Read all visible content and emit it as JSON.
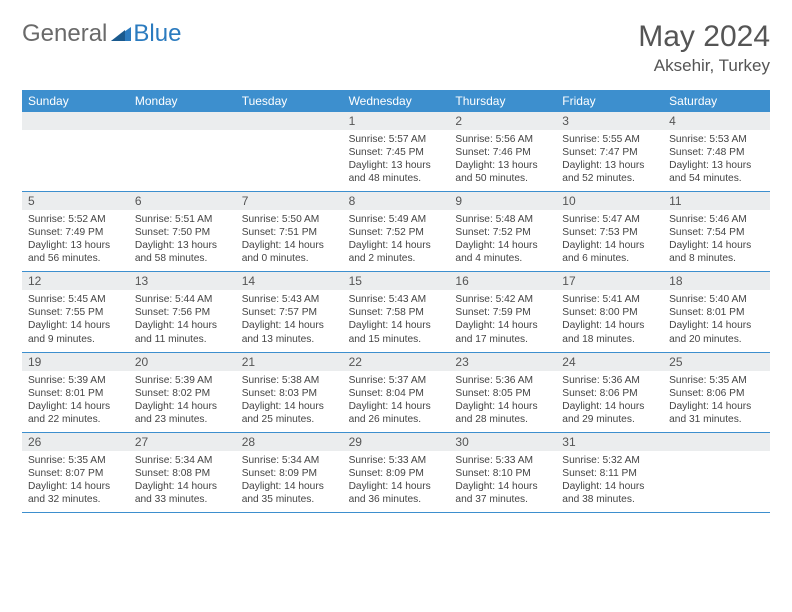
{
  "brand": {
    "part1": "General",
    "part2": "Blue"
  },
  "title": "May 2024",
  "location": "Aksehir, Turkey",
  "colors": {
    "header_bar": "#3d8fce",
    "daynum_bg": "#ebedee",
    "text": "#444444",
    "border": "#3d8fce"
  },
  "day_names": [
    "Sunday",
    "Monday",
    "Tuesday",
    "Wednesday",
    "Thursday",
    "Friday",
    "Saturday"
  ],
  "weeks": [
    [
      null,
      null,
      null,
      {
        "n": "1",
        "sr": "5:57 AM",
        "ss": "7:45 PM",
        "dl": "13 hours and 48 minutes."
      },
      {
        "n": "2",
        "sr": "5:56 AM",
        "ss": "7:46 PM",
        "dl": "13 hours and 50 minutes."
      },
      {
        "n": "3",
        "sr": "5:55 AM",
        "ss": "7:47 PM",
        "dl": "13 hours and 52 minutes."
      },
      {
        "n": "4",
        "sr": "5:53 AM",
        "ss": "7:48 PM",
        "dl": "13 hours and 54 minutes."
      }
    ],
    [
      {
        "n": "5",
        "sr": "5:52 AM",
        "ss": "7:49 PM",
        "dl": "13 hours and 56 minutes."
      },
      {
        "n": "6",
        "sr": "5:51 AM",
        "ss": "7:50 PM",
        "dl": "13 hours and 58 minutes."
      },
      {
        "n": "7",
        "sr": "5:50 AM",
        "ss": "7:51 PM",
        "dl": "14 hours and 0 minutes."
      },
      {
        "n": "8",
        "sr": "5:49 AM",
        "ss": "7:52 PM",
        "dl": "14 hours and 2 minutes."
      },
      {
        "n": "9",
        "sr": "5:48 AM",
        "ss": "7:52 PM",
        "dl": "14 hours and 4 minutes."
      },
      {
        "n": "10",
        "sr": "5:47 AM",
        "ss": "7:53 PM",
        "dl": "14 hours and 6 minutes."
      },
      {
        "n": "11",
        "sr": "5:46 AM",
        "ss": "7:54 PM",
        "dl": "14 hours and 8 minutes."
      }
    ],
    [
      {
        "n": "12",
        "sr": "5:45 AM",
        "ss": "7:55 PM",
        "dl": "14 hours and 9 minutes."
      },
      {
        "n": "13",
        "sr": "5:44 AM",
        "ss": "7:56 PM",
        "dl": "14 hours and 11 minutes."
      },
      {
        "n": "14",
        "sr": "5:43 AM",
        "ss": "7:57 PM",
        "dl": "14 hours and 13 minutes."
      },
      {
        "n": "15",
        "sr": "5:43 AM",
        "ss": "7:58 PM",
        "dl": "14 hours and 15 minutes."
      },
      {
        "n": "16",
        "sr": "5:42 AM",
        "ss": "7:59 PM",
        "dl": "14 hours and 17 minutes."
      },
      {
        "n": "17",
        "sr": "5:41 AM",
        "ss": "8:00 PM",
        "dl": "14 hours and 18 minutes."
      },
      {
        "n": "18",
        "sr": "5:40 AM",
        "ss": "8:01 PM",
        "dl": "14 hours and 20 minutes."
      }
    ],
    [
      {
        "n": "19",
        "sr": "5:39 AM",
        "ss": "8:01 PM",
        "dl": "14 hours and 22 minutes."
      },
      {
        "n": "20",
        "sr": "5:39 AM",
        "ss": "8:02 PM",
        "dl": "14 hours and 23 minutes."
      },
      {
        "n": "21",
        "sr": "5:38 AM",
        "ss": "8:03 PM",
        "dl": "14 hours and 25 minutes."
      },
      {
        "n": "22",
        "sr": "5:37 AM",
        "ss": "8:04 PM",
        "dl": "14 hours and 26 minutes."
      },
      {
        "n": "23",
        "sr": "5:36 AM",
        "ss": "8:05 PM",
        "dl": "14 hours and 28 minutes."
      },
      {
        "n": "24",
        "sr": "5:36 AM",
        "ss": "8:06 PM",
        "dl": "14 hours and 29 minutes."
      },
      {
        "n": "25",
        "sr": "5:35 AM",
        "ss": "8:06 PM",
        "dl": "14 hours and 31 minutes."
      }
    ],
    [
      {
        "n": "26",
        "sr": "5:35 AM",
        "ss": "8:07 PM",
        "dl": "14 hours and 32 minutes."
      },
      {
        "n": "27",
        "sr": "5:34 AM",
        "ss": "8:08 PM",
        "dl": "14 hours and 33 minutes."
      },
      {
        "n": "28",
        "sr": "5:34 AM",
        "ss": "8:09 PM",
        "dl": "14 hours and 35 minutes."
      },
      {
        "n": "29",
        "sr": "5:33 AM",
        "ss": "8:09 PM",
        "dl": "14 hours and 36 minutes."
      },
      {
        "n": "30",
        "sr": "5:33 AM",
        "ss": "8:10 PM",
        "dl": "14 hours and 37 minutes."
      },
      {
        "n": "31",
        "sr": "5:32 AM",
        "ss": "8:11 PM",
        "dl": "14 hours and 38 minutes."
      },
      null
    ]
  ],
  "labels": {
    "sunrise": "Sunrise:",
    "sunset": "Sunset:",
    "daylight": "Daylight:"
  }
}
